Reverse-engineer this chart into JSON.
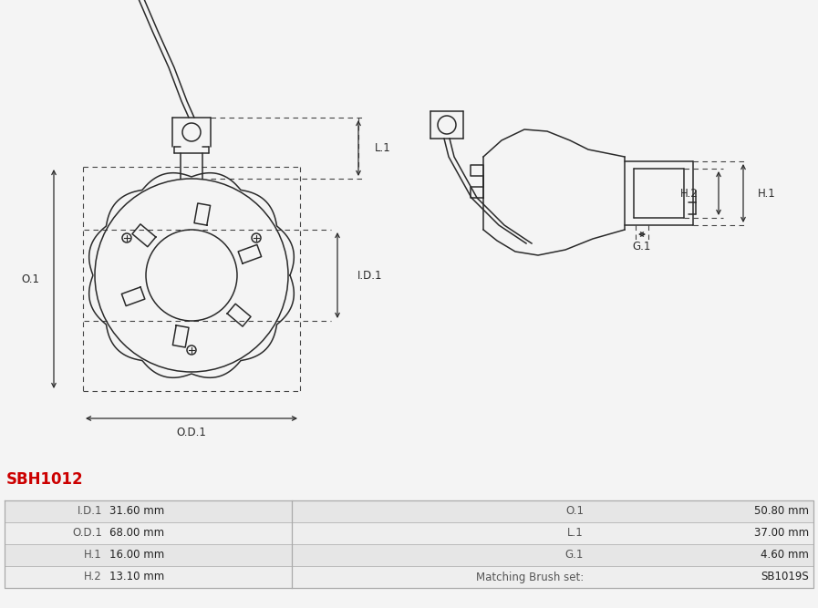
{
  "title": "SBH1012",
  "title_color": "#cc0000",
  "bg_color": "#f4f4f4",
  "table_rows": [
    {
      "left_label": "I.D.1",
      "left_value": "31.60 mm",
      "right_label": "O.1",
      "right_value": "50.80 mm"
    },
    {
      "left_label": "O.D.1",
      "left_value": "68.00 mm",
      "right_label": "L.1",
      "right_value": "37.00 mm"
    },
    {
      "left_label": "H.1",
      "left_value": "16.00 mm",
      "right_label": "G.1",
      "right_value": "4.60 mm"
    },
    {
      "left_label": "H.2",
      "left_value": "13.10 mm",
      "right_label": "Matching Brush set:",
      "right_value": "SB1019S"
    }
  ],
  "draw_color": "#2a2a2a",
  "dim_color": "#2a2a2a",
  "dash_color": "#444444",
  "lw": 1.1,
  "lw_dim": 0.9,
  "fig_w": 8.97,
  "fig_h": 6.67,
  "dpi": 100
}
